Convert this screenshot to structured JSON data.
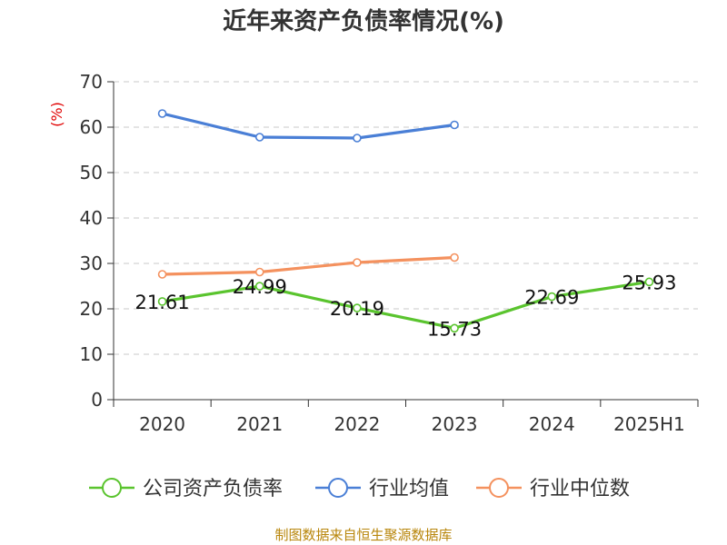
{
  "chart_data": {
    "type": "line",
    "title": "近年来资产负债率情况(%)",
    "ylabel": "(%)",
    "xlabel": "",
    "categories": [
      "2020",
      "2021",
      "2022",
      "2023",
      "2024",
      "2025H1"
    ],
    "ylim": [
      0,
      70
    ],
    "yticks": [
      0,
      10,
      20,
      30,
      40,
      50,
      60,
      70
    ],
    "grid": true,
    "legend_position": "bottom",
    "series": [
      {
        "name": "公司资产负债率",
        "color": "#5ac42e",
        "values": [
          21.61,
          24.99,
          20.19,
          15.73,
          22.69,
          25.93
        ],
        "labels": [
          "21.61",
          "24.99",
          "20.19",
          "15.73",
          "22.69",
          "25.93"
        ]
      },
      {
        "name": "行业均值",
        "color": "#4a7fd6",
        "values": [
          63.0,
          57.8,
          57.6,
          60.5,
          null,
          null
        ]
      },
      {
        "name": "行业中位数",
        "color": "#f4915e",
        "values": [
          27.6,
          28.1,
          30.2,
          31.3,
          null,
          null
        ]
      }
    ]
  },
  "source": "制图数据来自恒生聚源数据库"
}
